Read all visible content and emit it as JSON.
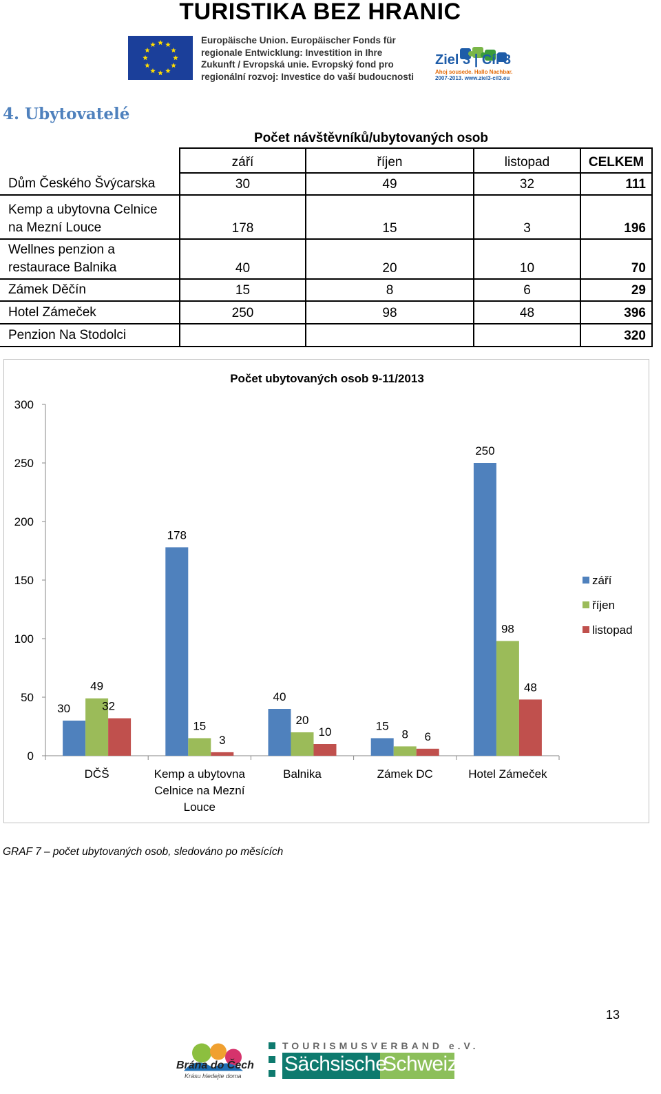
{
  "header": {
    "title": "TURISTIKA BEZ HRANIC",
    "eu_text": [
      "Europäische Union. Europäischer Fonds für",
      "regionale Entwicklung: Investition in Ihre",
      "Zukunft / Evropská unie. Evropský fond pro",
      "regionální rozvoj: Investice do vaší budoucnosti"
    ],
    "ziel_logo": {
      "title": "Ziel 3 | Cíl 3",
      "subtitle1": "Ahoj sousede. Hallo Nachbar.",
      "subtitle2": "2007-2013. www.ziel3-cil3.eu"
    }
  },
  "section_heading": "4. Ubytovatelé",
  "table": {
    "caption": "Počet návštěvníků/ubytovaných osob",
    "columns": [
      "září",
      "říjen",
      "listopad",
      "CELKEM"
    ],
    "rows": [
      {
        "name": "Dům Českého Švýcarska",
        "values": [
          "30",
          "49",
          "32"
        ],
        "total": "111"
      },
      {
        "name_lines": [
          "Kemp a ubytovna Celnice",
          "na Mezní Louce"
        ],
        "values": [
          "178",
          "15",
          "3"
        ],
        "total": "196"
      },
      {
        "name_lines": [
          "Wellnes penzion a",
          "restaurace Balnika"
        ],
        "values": [
          "40",
          "20",
          "10"
        ],
        "total": "70"
      },
      {
        "name": "Zámek Děčín",
        "values": [
          "15",
          "8",
          "6"
        ],
        "total": "29"
      },
      {
        "name": "Hotel Zámeček",
        "values": [
          "250",
          "98",
          "48"
        ],
        "total": "396"
      },
      {
        "name": "Penzion Na Stodolci",
        "values": [
          "",
          "",
          ""
        ],
        "total": "320"
      }
    ]
  },
  "chart_data": {
    "type": "bar",
    "title": "Počet ubytovaných osob 9-11/2013",
    "categories": [
      [
        "DČŠ"
      ],
      [
        "Kemp a ubytovna",
        "Celnice na Mezní",
        "Louce"
      ],
      [
        "Balnika"
      ],
      [
        "Zámek DC"
      ],
      [
        "Hotel Zámeček"
      ]
    ],
    "series": [
      {
        "name": "září",
        "values": [
          30,
          178,
          40,
          15,
          250
        ]
      },
      {
        "name": "říjen",
        "values": [
          49,
          15,
          20,
          8,
          98
        ]
      },
      {
        "name": "listopad",
        "values": [
          32,
          3,
          10,
          6,
          48
        ]
      }
    ],
    "yticks": [
      "0",
      "50",
      "100",
      "150",
      "200",
      "250",
      "300"
    ],
    "ylim": [
      0,
      300
    ],
    "grid": false,
    "legend": "right",
    "colors": [
      "#4f81bd",
      "#9bbb59",
      "#c0504d"
    ]
  },
  "figure_caption": "GRAF 7  –  počet ubytovaných osob, sledováno po měsících",
  "page_number": "13",
  "footer": {
    "brana_name": "Brána do Čech",
    "brana_slogan": "Krásu hledejte doma",
    "tv_name": "TOURISMUSVERBAND e.V.",
    "ss_word1": "Sächsische",
    "ss_word2": "Schweiz"
  }
}
